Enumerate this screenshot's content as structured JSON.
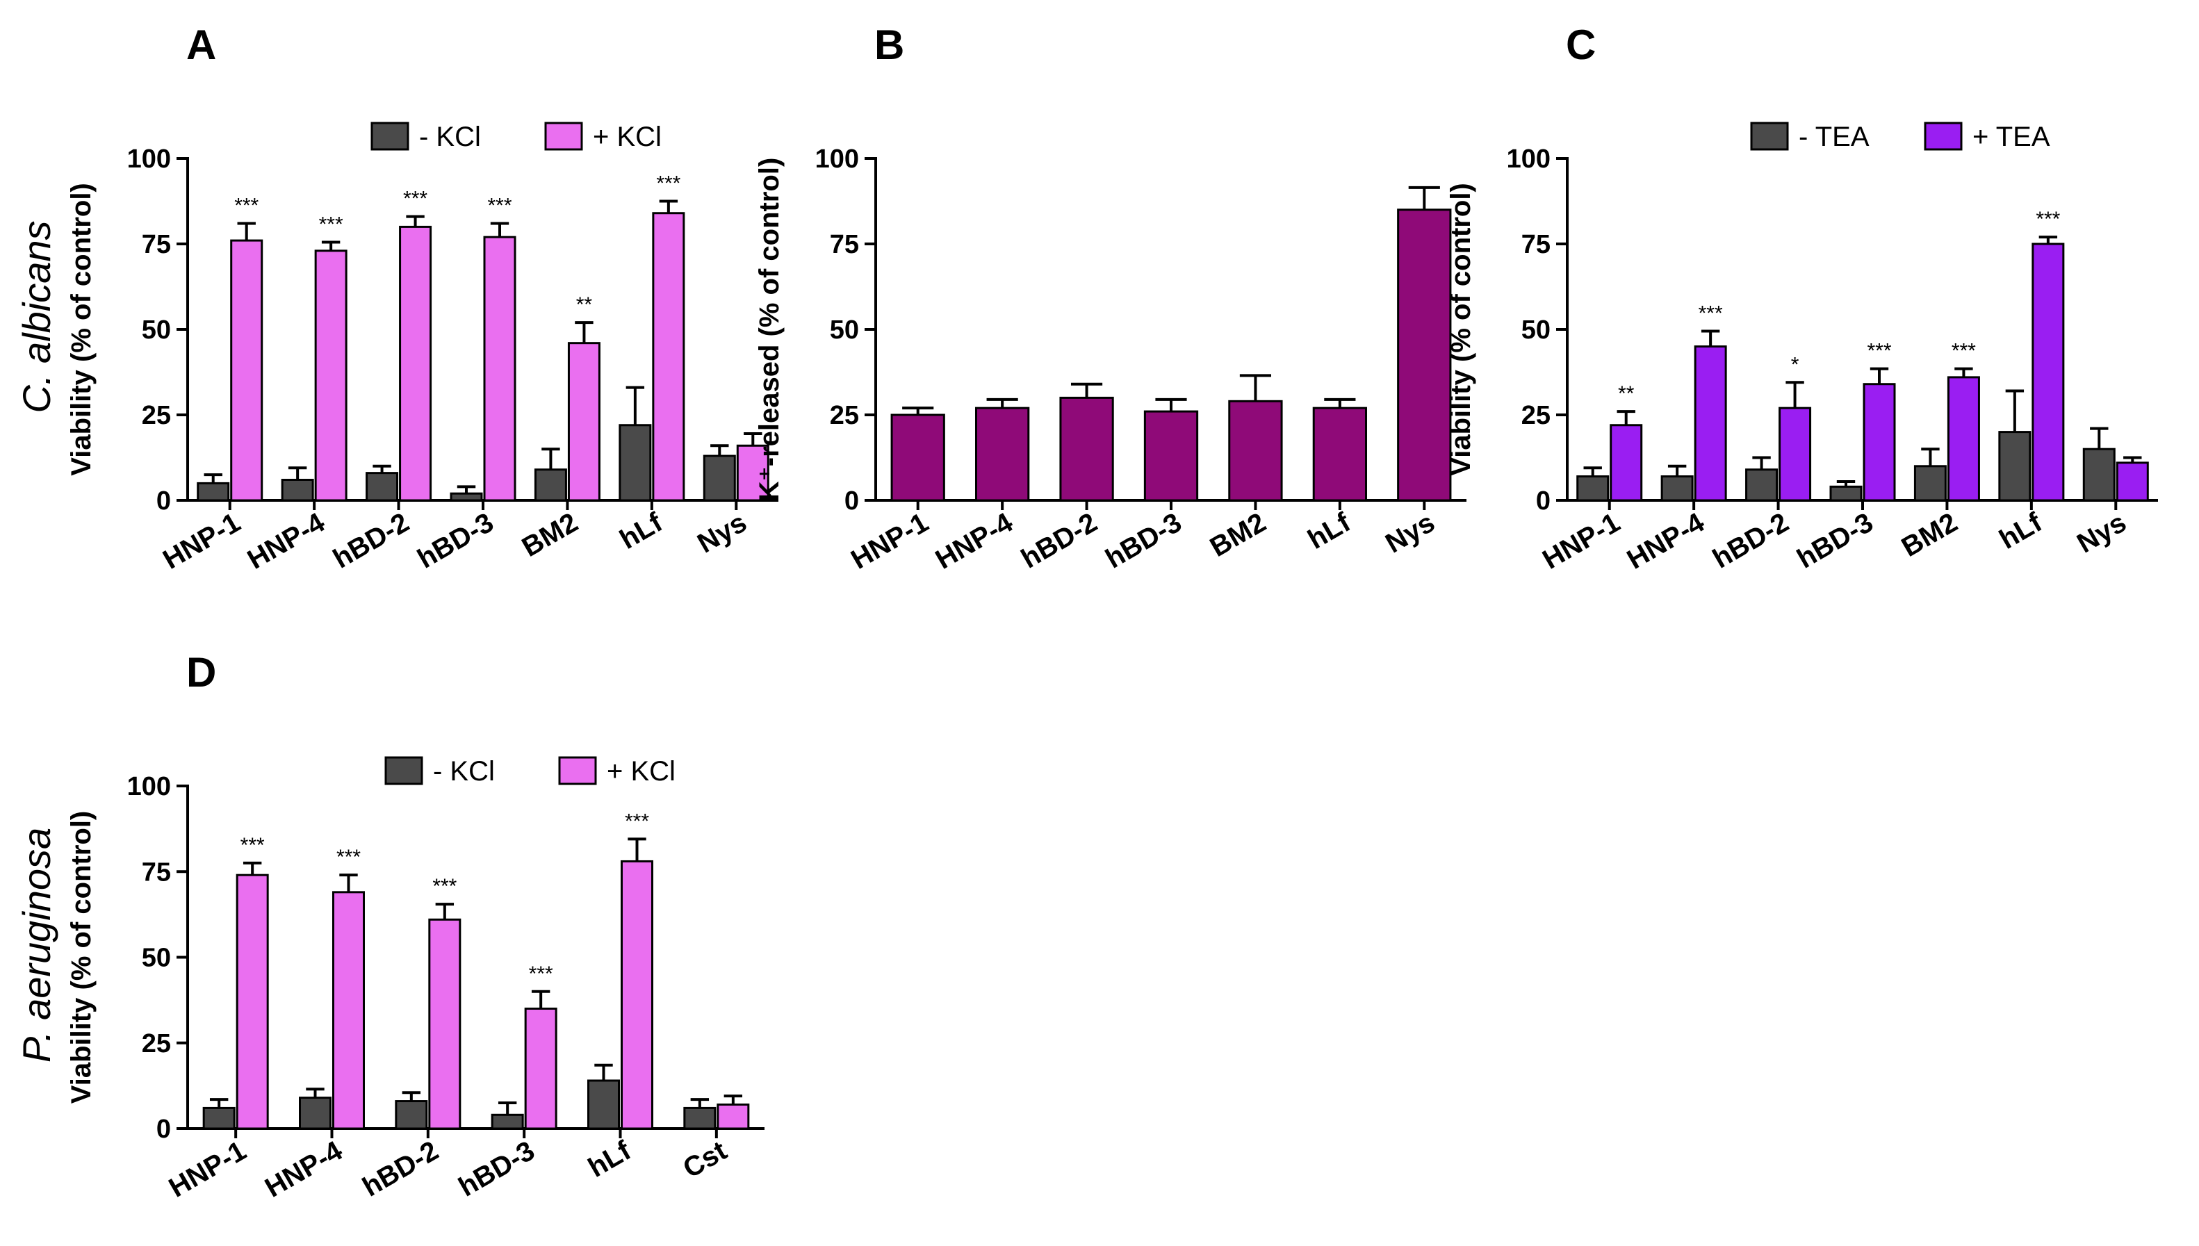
{
  "figure": {
    "organisms": [
      "C. albicans",
      "P. aeruginosa"
    ]
  },
  "colors": {
    "dark": "#4a4a4a",
    "pink": "#ea6ff0",
    "maroon": "#8f0a78",
    "violet": "#9a1ef2"
  },
  "chart_data": [
    {
      "panel": "A",
      "type": "bar",
      "ylabel": "Viability (% of control)",
      "ylim": [
        0,
        100
      ],
      "yticks": [
        "0",
        "25",
        "50",
        "75",
        "100"
      ],
      "categories": [
        "HNP-1",
        "HNP-4",
        "hBD-2",
        "hBD-3",
        "BM2",
        "hLf",
        "Nys"
      ],
      "series": [
        {
          "name": "- KCl",
          "color": "dark",
          "values": [
            5,
            6,
            8,
            2,
            9,
            22,
            13
          ],
          "errors": [
            2.5,
            3.5,
            2,
            2,
            6,
            11,
            3
          ]
        },
        {
          "name": "+ KCl",
          "color": "pink",
          "values": [
            76,
            73,
            80,
            77,
            46,
            84,
            16
          ],
          "errors": [
            5,
            2.5,
            3,
            4,
            6,
            3.5,
            3.5
          ]
        }
      ],
      "significance": [
        "***",
        "***",
        "***",
        "***",
        "**",
        "***",
        ""
      ],
      "legend": "top"
    },
    {
      "panel": "B",
      "type": "bar",
      "ylabel": "K⁺-released (% of control)",
      "ylim": [
        0,
        100
      ],
      "yticks": [
        "0",
        "25",
        "50",
        "75",
        "100"
      ],
      "categories": [
        "HNP-1",
        "HNP-4",
        "hBD-2",
        "hBD-3",
        "BM2",
        "hLf",
        "Nys"
      ],
      "series": [
        {
          "color": "maroon",
          "values": [
            25,
            27,
            30,
            26,
            29,
            27,
            85
          ],
          "errors": [
            2,
            2.5,
            4,
            3.5,
            7.5,
            2.5,
            6.5
          ]
        }
      ],
      "significance": [
        "",
        "",
        "",
        "",
        "",
        "",
        ""
      ]
    },
    {
      "panel": "C",
      "type": "bar",
      "ylabel": "Viability (% of control)",
      "ylim": [
        0,
        100
      ],
      "yticks": [
        "0",
        "25",
        "50",
        "75",
        "100"
      ],
      "categories": [
        "HNP-1",
        "HNP-4",
        "hBD-2",
        "hBD-3",
        "BM2",
        "hLf",
        "Nys"
      ],
      "series": [
        {
          "name": "- TEA",
          "color": "dark",
          "values": [
            7,
            7,
            9,
            4,
            10,
            20,
            15
          ],
          "errors": [
            2.5,
            3,
            3.5,
            1.5,
            5,
            12,
            6
          ]
        },
        {
          "name": "+ TEA",
          "color": "violet",
          "values": [
            22,
            45,
            27,
            34,
            36,
            75,
            11
          ],
          "errors": [
            4,
            4.5,
            7.5,
            4.5,
            2.5,
            2,
            1.5
          ]
        }
      ],
      "significance": [
        "**",
        "***",
        "*",
        "***",
        "***",
        "***",
        ""
      ],
      "legend": "top"
    },
    {
      "panel": "D",
      "type": "bar",
      "ylabel": "Viability (% of control)",
      "ylim": [
        0,
        100
      ],
      "yticks": [
        "0",
        "25",
        "50",
        "75",
        "100"
      ],
      "categories": [
        "HNP-1",
        "HNP-4",
        "hBD-2",
        "hBD-3",
        "hLf",
        "Cst"
      ],
      "series": [
        {
          "name": "- KCl",
          "color": "dark",
          "values": [
            6,
            9,
            8,
            4,
            14,
            6
          ],
          "errors": [
            2.5,
            2.5,
            2.5,
            3.5,
            4.5,
            2.5
          ]
        },
        {
          "name": "+ KCl",
          "color": "pink",
          "values": [
            74,
            69,
            61,
            35,
            78,
            7
          ],
          "errors": [
            3.5,
            5,
            4.5,
            5,
            6.5,
            2.5
          ]
        }
      ],
      "significance": [
        "***",
        "***",
        "***",
        "***",
        "***",
        ""
      ],
      "legend": "top"
    }
  ]
}
